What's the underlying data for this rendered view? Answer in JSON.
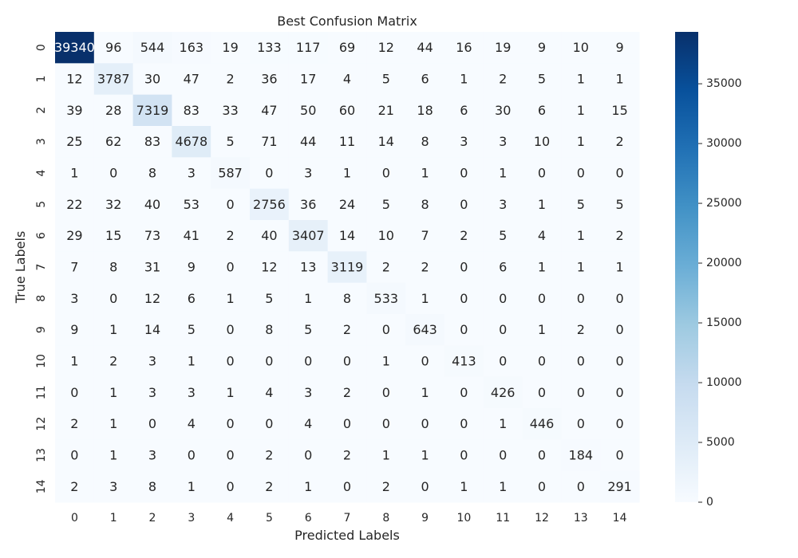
{
  "chart_data": {
    "type": "heatmap",
    "title": "Best Confusion Matrix",
    "xlabel": "Predicted Labels",
    "ylabel": "True Labels",
    "x_tick_labels": [
      "0",
      "1",
      "2",
      "3",
      "4",
      "5",
      "6",
      "7",
      "8",
      "9",
      "10",
      "11",
      "12",
      "13",
      "14"
    ],
    "y_tick_labels": [
      "0",
      "1",
      "2",
      "3",
      "4",
      "5",
      "6",
      "7",
      "8",
      "9",
      "10",
      "11",
      "12",
      "13",
      "14"
    ],
    "matrix": [
      [
        39340,
        96,
        544,
        163,
        19,
        133,
        117,
        69,
        12,
        44,
        16,
        19,
        9,
        10,
        9
      ],
      [
        12,
        3787,
        30,
        47,
        2,
        36,
        17,
        4,
        5,
        6,
        1,
        2,
        5,
        1,
        1
      ],
      [
        39,
        28,
        7319,
        83,
        33,
        47,
        50,
        60,
        21,
        18,
        6,
        30,
        6,
        1,
        15
      ],
      [
        25,
        62,
        83,
        4678,
        5,
        71,
        44,
        11,
        14,
        8,
        3,
        3,
        10,
        1,
        2
      ],
      [
        1,
        0,
        8,
        3,
        587,
        0,
        3,
        1,
        0,
        1,
        0,
        1,
        0,
        0,
        0
      ],
      [
        22,
        32,
        40,
        53,
        0,
        2756,
        36,
        24,
        5,
        8,
        0,
        3,
        1,
        5,
        5
      ],
      [
        29,
        15,
        73,
        41,
        2,
        40,
        3407,
        14,
        10,
        7,
        2,
        5,
        4,
        1,
        2
      ],
      [
        7,
        8,
        31,
        9,
        0,
        12,
        13,
        3119,
        2,
        2,
        0,
        6,
        1,
        1,
        1
      ],
      [
        3,
        0,
        12,
        6,
        1,
        5,
        1,
        8,
        533,
        1,
        0,
        0,
        0,
        0,
        0
      ],
      [
        9,
        1,
        14,
        5,
        0,
        8,
        5,
        2,
        0,
        643,
        0,
        0,
        1,
        2,
        0
      ],
      [
        1,
        2,
        3,
        1,
        0,
        0,
        0,
        0,
        1,
        0,
        413,
        0,
        0,
        0,
        0
      ],
      [
        0,
        1,
        3,
        3,
        1,
        4,
        3,
        2,
        0,
        1,
        0,
        426,
        0,
        0,
        0
      ],
      [
        2,
        1,
        0,
        4,
        0,
        0,
        4,
        0,
        0,
        0,
        0,
        1,
        446,
        0,
        0
      ],
      [
        0,
        1,
        3,
        0,
        0,
        2,
        0,
        2,
        1,
        1,
        0,
        0,
        0,
        184,
        0
      ],
      [
        2,
        3,
        8,
        1,
        0,
        2,
        1,
        0,
        2,
        0,
        1,
        1,
        0,
        0,
        291
      ]
    ],
    "colorbar": {
      "min": 0,
      "max": 39340,
      "ticks": [
        0,
        5000,
        10000,
        15000,
        20000,
        25000,
        30000,
        35000
      ],
      "tick_labels": [
        "0",
        "5000",
        "10000",
        "15000",
        "20000",
        "25000",
        "30000",
        "35000"
      ]
    },
    "colormap": "Blues",
    "colors": {
      "low": "#f7fbff",
      "high": "#08306b",
      "text_dark": "#262626",
      "text_light": "#ffffff"
    },
    "grid": false
  }
}
